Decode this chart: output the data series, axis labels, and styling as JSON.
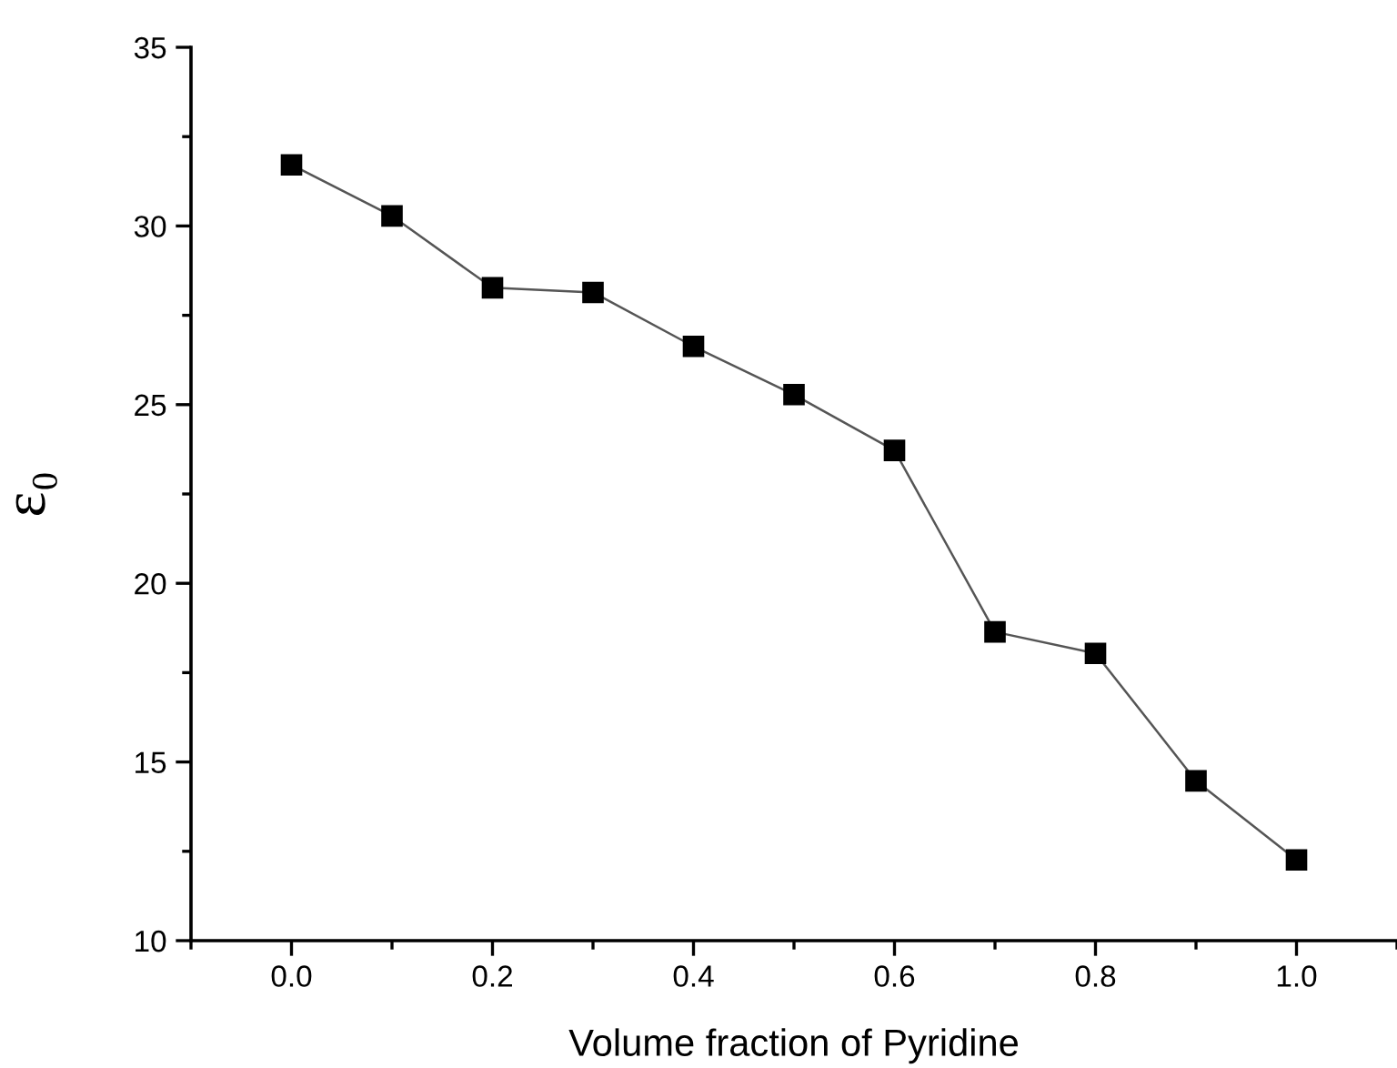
{
  "chart_data": {
    "type": "line",
    "xlabel": "Volume fraction of Pyridine",
    "ylabel": "ε₀",
    "x": [
      0.0,
      0.1,
      0.2,
      0.3,
      0.4,
      0.5,
      0.6,
      0.7,
      0.8,
      0.9,
      1.0
    ],
    "series": [
      {
        "color": "#000000",
        "values": [
          31.71,
          30.28,
          28.27,
          28.14,
          26.63,
          25.28,
          23.72,
          18.64,
          18.04,
          14.47,
          12.26
        ]
      }
    ],
    "xlim": [
      -0.1,
      1.1
    ],
    "xticks": [
      {
        "value": 0.0,
        "label": "0.0"
      },
      {
        "value": 0.2,
        "label": "0.2"
      },
      {
        "value": 0.4,
        "label": "0.4"
      },
      {
        "value": 0.6,
        "label": "0.6"
      },
      {
        "value": 0.8,
        "label": "0.8"
      },
      {
        "value": 1.0,
        "label": "1.0"
      }
    ],
    "ylim": [
      10,
      35
    ],
    "yticks": [
      10,
      15,
      20,
      25,
      30,
      35
    ],
    "marker": "square",
    "line_style": "solid",
    "grid": false,
    "legend": false
  }
}
